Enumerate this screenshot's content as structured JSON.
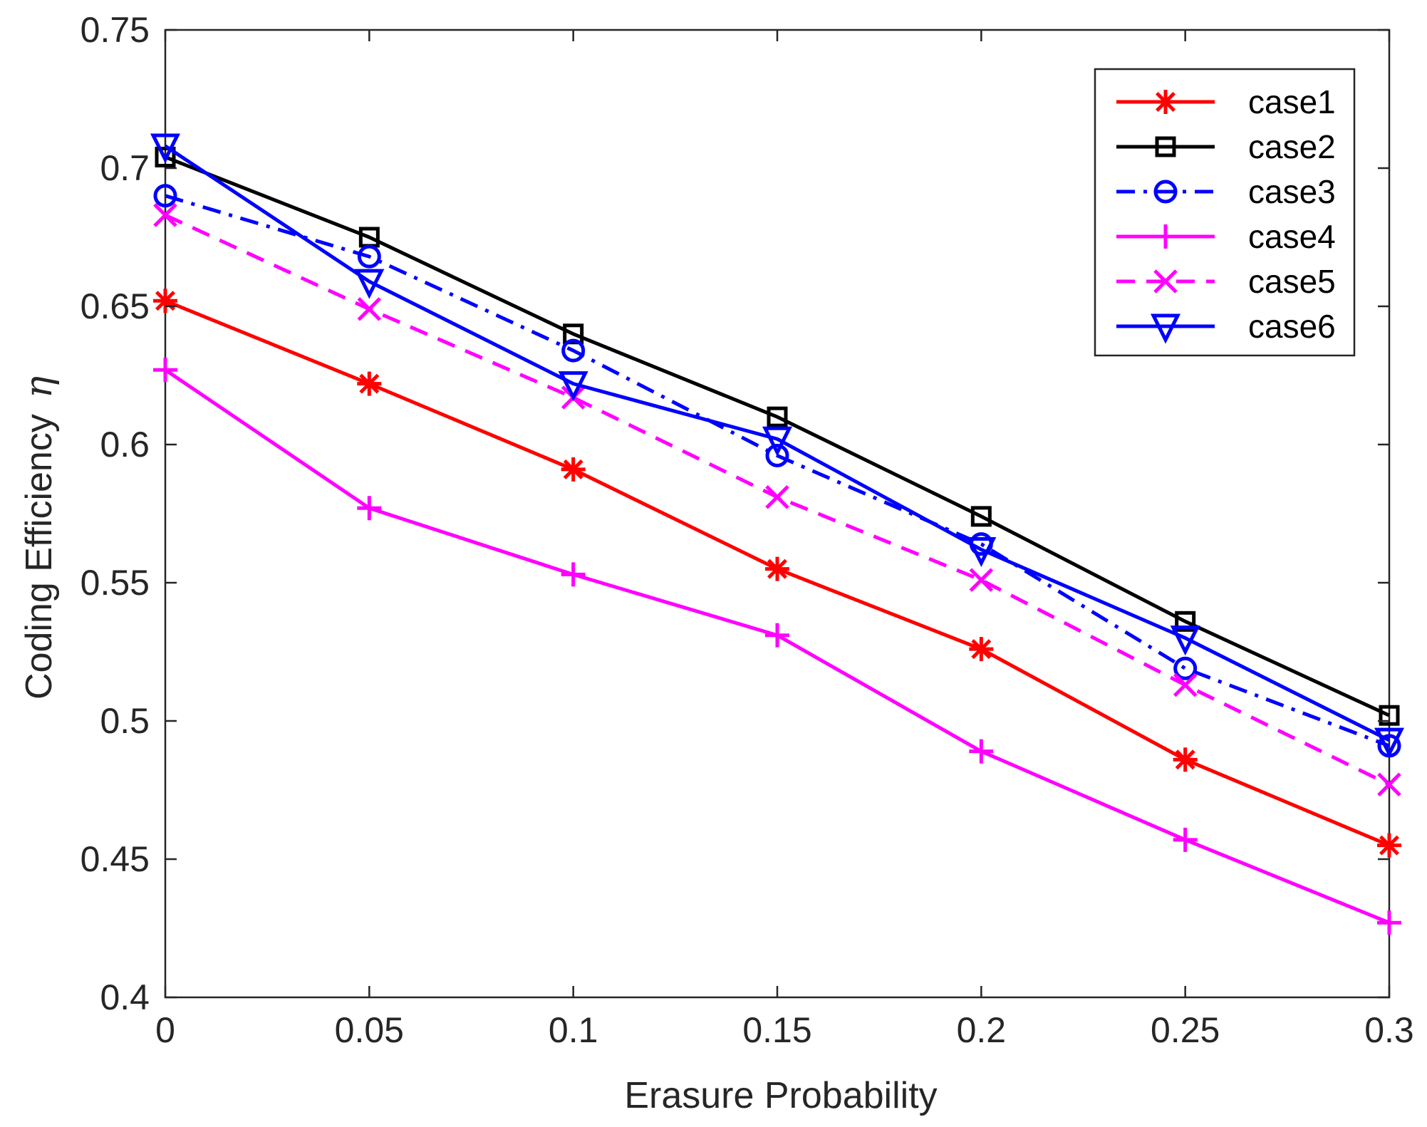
{
  "chart_data": {
    "type": "line",
    "title": "",
    "xlabel": "Erasure Probability",
    "ylabel": "Coding Efficiency",
    "ylabel_symbol": "η",
    "x": [
      0,
      0.05,
      0.1,
      0.15,
      0.2,
      0.25,
      0.3
    ],
    "x_tick_labels": [
      "0",
      "0.05",
      "0.1",
      "0.15",
      "0.2",
      "0.25",
      "0.3"
    ],
    "y_tick_labels": [
      "0.4",
      "0.45",
      "0.5",
      "0.55",
      "0.6",
      "0.65",
      "0.7",
      "0.75"
    ],
    "xlim": [
      0,
      0.3
    ],
    "ylim": [
      0.4,
      0.75
    ],
    "grid": false,
    "legend_position": "top-right",
    "series": [
      {
        "name": "case1",
        "color": "#ff0000",
        "line_style": "solid",
        "marker": "asterisk",
        "values": [
          0.652,
          0.622,
          0.591,
          0.555,
          0.526,
          0.486,
          0.455
        ]
      },
      {
        "name": "case2",
        "color": "#000000",
        "line_style": "solid",
        "marker": "square",
        "values": [
          0.704,
          0.675,
          0.64,
          0.61,
          0.574,
          0.536,
          0.502
        ]
      },
      {
        "name": "case3",
        "color": "#0000ff",
        "line_style": "dashdot",
        "marker": "circle",
        "values": [
          0.69,
          0.668,
          0.634,
          0.596,
          0.564,
          0.519,
          0.491
        ]
      },
      {
        "name": "case4",
        "color": "#ff00ff",
        "line_style": "solid",
        "marker": "plus",
        "values": [
          0.627,
          0.577,
          0.553,
          0.531,
          0.489,
          0.457,
          0.427
        ]
      },
      {
        "name": "case5",
        "color": "#ff00ff",
        "line_style": "dashed",
        "marker": "x",
        "values": [
          0.683,
          0.649,
          0.617,
          0.581,
          0.551,
          0.513,
          0.477
        ]
      },
      {
        "name": "case6",
        "color": "#0000ff",
        "line_style": "solid",
        "marker": "triangle-down",
        "values": [
          0.708,
          0.659,
          0.622,
          0.602,
          0.562,
          0.53,
          0.493
        ]
      }
    ]
  }
}
